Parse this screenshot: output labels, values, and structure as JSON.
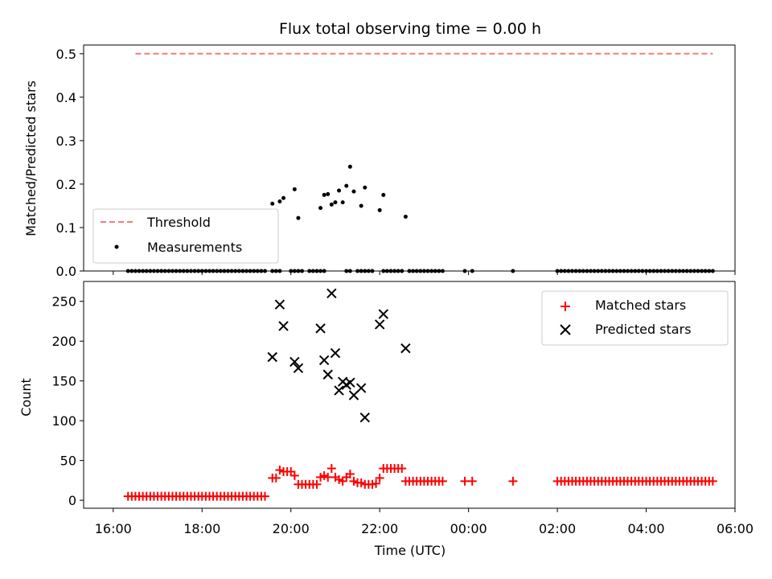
{
  "chart_data": {
    "type": "scatter",
    "title": "Flux total observing time = 0.00 h",
    "xlabel": "Time (UTC)",
    "x_axis": {
      "type": "time",
      "range": [
        "16:00",
        "06:00"
      ],
      "ticks": [
        "16:00",
        "18:00",
        "20:00",
        "22:00",
        "00:00",
        "02:00",
        "04:00",
        "06:00"
      ]
    },
    "panels": [
      {
        "ylabel": "Matched/Predicted stars",
        "ylim": [
          0,
          0.52
        ],
        "yticks": [
          "0.0",
          "0.1",
          "0.2",
          "0.3",
          "0.4",
          "0.5"
        ],
        "legend_position": "lower-left",
        "series": [
          {
            "name": "Threshold",
            "type": "line",
            "style": "dashed",
            "color": "#f47c7c",
            "x": [
              "16:30",
              "05:30"
            ],
            "y": [
              0.5,
              0.5
            ]
          },
          {
            "name": "Measurements",
            "type": "scatter",
            "marker": "dot",
            "color": "#000000",
            "points": [
              [
                "19:35",
                0.155
              ],
              [
                "19:45",
                0.16
              ],
              [
                "19:50",
                0.168
              ],
              [
                "20:05",
                0.188
              ],
              [
                "20:10",
                0.122
              ],
              [
                "20:40",
                0.145
              ],
              [
                "20:45",
                0.175
              ],
              [
                "20:50",
                0.177
              ],
              [
                "20:55",
                0.153
              ],
              [
                "21:00",
                0.158
              ],
              [
                "21:05",
                0.185
              ],
              [
                "21:10",
                0.158
              ],
              [
                "21:15",
                0.196
              ],
              [
                "21:20",
                0.24
              ],
              [
                "21:25",
                0.183
              ],
              [
                "21:35",
                0.15
              ],
              [
                "21:40",
                0.192
              ],
              [
                "22:00",
                0.14
              ],
              [
                "22:05",
                0.175
              ],
              [
                "22:35",
                0.125
              ]
            ],
            "zero_ranges": [
              [
                "16:20",
                "19:25"
              ],
              [
                "19:35",
                "19:45"
              ],
              [
                "20:00",
                "20:15"
              ],
              [
                "20:25",
                "20:45"
              ],
              [
                "21:15",
                "21:20"
              ],
              [
                "21:35",
                "21:50"
              ],
              [
                "22:05",
                "22:30"
              ],
              [
                "22:40",
                "23:25"
              ]
            ],
            "zero_points": [
              "21:30",
              "23:55",
              "00:05",
              "01:00"
            ],
            "zero_range_late": [
              "02:00",
              "05:30"
            ]
          }
        ]
      },
      {
        "ylabel": "Count",
        "ylim": [
          -10,
          275
        ],
        "yticks": [
          "0",
          "50",
          "100",
          "150",
          "200",
          "250"
        ],
        "legend_position": "upper-right",
        "series": [
          {
            "name": "Matched stars",
            "type": "scatter",
            "marker": "plus",
            "color": "#ff0000",
            "points": [
              [
                "19:35",
                28
              ],
              [
                "19:40",
                28
              ],
              [
                "19:45",
                38
              ],
              [
                "19:50",
                36
              ],
              [
                "19:55",
                36
              ],
              [
                "20:00",
                36
              ],
              [
                "20:05",
                31
              ],
              [
                "20:10",
                20
              ],
              [
                "20:15",
                20
              ],
              [
                "20:20",
                20
              ],
              [
                "20:25",
                20
              ],
              [
                "20:30",
                20
              ],
              [
                "20:35",
                20
              ],
              [
                "20:40",
                29
              ],
              [
                "20:45",
                31
              ],
              [
                "20:50",
                29
              ],
              [
                "20:55",
                40
              ],
              [
                "21:00",
                29
              ],
              [
                "21:05",
                26
              ],
              [
                "21:10",
                24
              ],
              [
                "21:15",
                29
              ],
              [
                "21:20",
                33
              ],
              [
                "21:25",
                24
              ],
              [
                "21:30",
                22
              ],
              [
                "21:35",
                22
              ],
              [
                "21:40",
                20
              ],
              [
                "21:45",
                20
              ],
              [
                "21:50",
                20
              ],
              [
                "21:55",
                21
              ],
              [
                "22:00",
                28
              ],
              [
                "22:05",
                40
              ],
              [
                "22:10",
                40
              ],
              [
                "22:15",
                40
              ],
              [
                "22:20",
                40
              ],
              [
                "22:25",
                40
              ],
              [
                "22:30",
                40
              ],
              [
                "23:55",
                24
              ],
              [
                "00:05",
                24
              ],
              [
                "01:00",
                24
              ]
            ],
            "low_range": {
              "from": "16:20",
              "to": "19:25",
              "value": 5
            },
            "mid_range": {
              "from": "22:35",
              "to": "23:25",
              "value": 24
            },
            "late_range": {
              "from": "02:00",
              "to": "05:30",
              "value": 24
            }
          },
          {
            "name": "Predicted stars",
            "type": "scatter",
            "marker": "x",
            "color": "#000000",
            "points": [
              [
                "19:35",
                180
              ],
              [
                "19:45",
                246
              ],
              [
                "19:50",
                219
              ],
              [
                "20:05",
                174
              ],
              [
                "20:10",
                166
              ],
              [
                "20:40",
                216
              ],
              [
                "20:45",
                176
              ],
              [
                "20:50",
                158
              ],
              [
                "20:55",
                260
              ],
              [
                "21:00",
                185
              ],
              [
                "21:05",
                138
              ],
              [
                "21:10",
                149
              ],
              [
                "21:15",
                145
              ],
              [
                "21:20",
                148
              ],
              [
                "21:25",
                132
              ],
              [
                "21:35",
                141
              ],
              [
                "21:40",
                104
              ],
              [
                "22:00",
                221
              ],
              [
                "22:05",
                234
              ],
              [
                "22:35",
                191
              ]
            ]
          }
        ]
      }
    ]
  }
}
